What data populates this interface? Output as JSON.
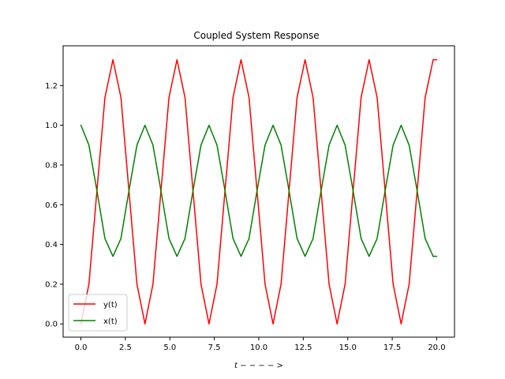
{
  "chart_data": {
    "type": "line",
    "title": "Coupled System Response",
    "xlabel": "t − − − − >",
    "ylabel": "",
    "xlim": [
      -1.0,
      21.0
    ],
    "ylim": [
      -0.0667,
      1.4
    ],
    "xticks": [
      0.0,
      2.5,
      5.0,
      7.5,
      10.0,
      12.5,
      15.0,
      17.5,
      20.0
    ],
    "xtick_labels": [
      "0.0",
      "2.5",
      "5.0",
      "7.5",
      "10.0",
      "12.5",
      "15.0",
      "17.5",
      "20.0"
    ],
    "yticks": [
      0.0,
      0.2,
      0.4,
      0.6,
      0.8,
      1.0,
      1.2
    ],
    "ytick_labels": [
      "0.0",
      "0.2",
      "0.4",
      "0.6",
      "0.8",
      "1.0",
      "1.2"
    ],
    "grid": false,
    "legend": "lower-left",
    "series": [
      {
        "name": "y(t)",
        "color": "#ff0000",
        "x": [
          0.0,
          0.45,
          0.9,
          1.35,
          1.8,
          2.25,
          2.7,
          3.15,
          3.6,
          4.05,
          4.5,
          4.95,
          5.4,
          5.85,
          6.3,
          6.75,
          7.2,
          7.65,
          8.1,
          8.55,
          9.0,
          9.45,
          9.9,
          10.35,
          10.8,
          11.25,
          11.7,
          12.15,
          12.6,
          13.05,
          13.5,
          13.95,
          14.4,
          14.85,
          15.3,
          15.75,
          16.2,
          16.65,
          17.1,
          17.55,
          18.0,
          18.45,
          18.9,
          19.35,
          19.8,
          20.0
        ],
        "y": [
          0.0,
          0.2,
          0.67,
          1.14,
          1.33,
          1.14,
          0.67,
          0.2,
          0.0,
          0.2,
          0.67,
          1.14,
          1.33,
          1.14,
          0.67,
          0.2,
          0.0,
          0.2,
          0.67,
          1.14,
          1.33,
          1.14,
          0.67,
          0.2,
          0.0,
          0.2,
          0.67,
          1.14,
          1.33,
          1.14,
          0.67,
          0.2,
          0.0,
          0.2,
          0.67,
          1.14,
          1.33,
          1.14,
          0.67,
          0.2,
          0.0,
          0.2,
          0.67,
          1.14,
          1.33,
          1.33
        ]
      },
      {
        "name": "x(t)",
        "color": "#008000",
        "x": [
          0.0,
          0.45,
          0.9,
          1.35,
          1.8,
          2.25,
          2.7,
          3.15,
          3.6,
          4.05,
          4.5,
          4.95,
          5.4,
          5.85,
          6.3,
          6.75,
          7.2,
          7.65,
          8.1,
          8.55,
          9.0,
          9.45,
          9.9,
          10.35,
          10.8,
          11.25,
          11.7,
          12.15,
          12.6,
          13.05,
          13.5,
          13.95,
          14.4,
          14.85,
          15.3,
          15.75,
          16.2,
          16.65,
          17.1,
          17.55,
          18.0,
          18.45,
          18.9,
          19.35,
          19.8,
          20.0
        ],
        "y": [
          1.0,
          0.9,
          0.67,
          0.43,
          0.34,
          0.43,
          0.67,
          0.9,
          1.0,
          0.9,
          0.67,
          0.43,
          0.34,
          0.43,
          0.67,
          0.9,
          1.0,
          0.9,
          0.67,
          0.43,
          0.34,
          0.43,
          0.67,
          0.9,
          1.0,
          0.9,
          0.67,
          0.43,
          0.34,
          0.43,
          0.67,
          0.9,
          1.0,
          0.9,
          0.67,
          0.43,
          0.34,
          0.43,
          0.67,
          0.9,
          1.0,
          0.9,
          0.67,
          0.43,
          0.34,
          0.34
        ]
      }
    ]
  }
}
